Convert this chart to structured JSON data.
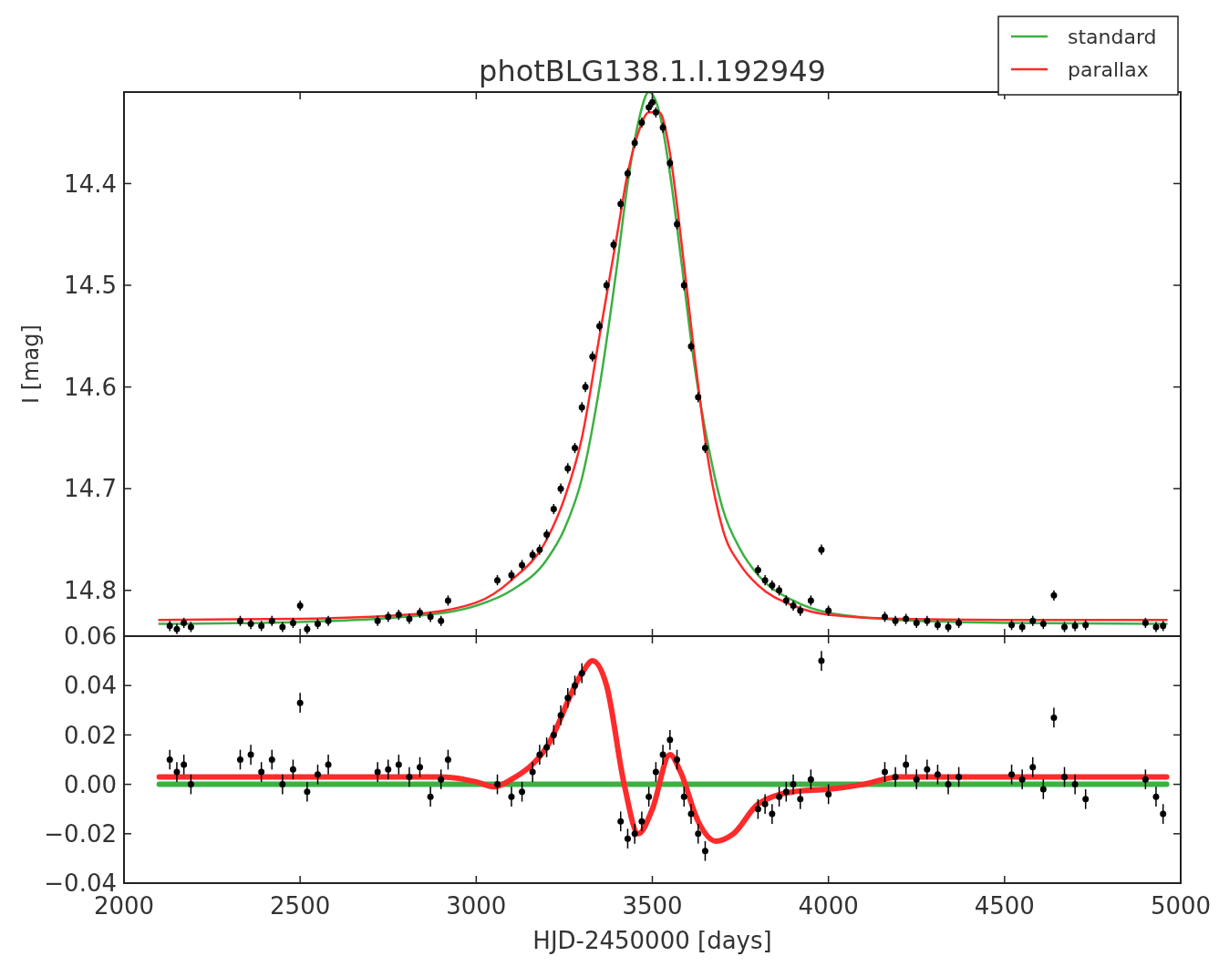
{
  "chart_data": [
    {
      "type": "scatter",
      "title": "photBLG138.1.I.192949",
      "ylabel": "I [mag]",
      "xlim": [
        2000,
        5000
      ],
      "xticks": [
        2000,
        2500,
        3000,
        3500,
        4000,
        4500,
        5000
      ],
      "ylim": [
        14.845,
        14.31
      ],
      "yticks": [
        14.4,
        14.5,
        14.6,
        14.7,
        14.8
      ],
      "tick_labels": "y",
      "legend": "top right",
      "series": [
        {
          "color": "#000000",
          "marker": "circle",
          "x": [
            2130,
            2150,
            2170,
            2190,
            2330,
            2360,
            2390,
            2420,
            2450,
            2480,
            2500,
            2520,
            2550,
            2580,
            2720,
            2750,
            2780,
            2810,
            2840,
            2870,
            2900,
            2920,
            3060,
            3100,
            3130,
            3160,
            3180,
            3200,
            3220,
            3240,
            3260,
            3280,
            3300,
            3310,
            3330,
            3350,
            3370,
            3390,
            3410,
            3430,
            3450,
            3470,
            3490,
            3500,
            3510,
            3530,
            3550,
            3570,
            3590,
            3610,
            3630,
            3650,
            3800,
            3820,
            3840,
            3860,
            3880,
            3900,
            3920,
            3950,
            3980,
            4000,
            4160,
            4190,
            4220,
            4250,
            4280,
            4310,
            4340,
            4370,
            4520,
            4550,
            4580,
            4610,
            4640,
            4670,
            4700,
            4730,
            4900,
            4930,
            4950
          ],
          "values": [
            14.835,
            14.838,
            14.832,
            14.836,
            14.83,
            14.833,
            14.835,
            14.83,
            14.836,
            14.832,
            14.815,
            14.838,
            14.833,
            14.83,
            14.83,
            14.826,
            14.824,
            14.828,
            14.822,
            14.826,
            14.83,
            14.81,
            14.79,
            14.785,
            14.775,
            14.765,
            14.76,
            14.745,
            14.72,
            14.7,
            14.68,
            14.66,
            14.62,
            14.6,
            14.57,
            14.54,
            14.5,
            14.46,
            14.42,
            14.39,
            14.36,
            14.34,
            14.325,
            14.32,
            14.33,
            14.345,
            14.38,
            14.44,
            14.5,
            14.56,
            14.61,
            14.66,
            14.78,
            14.79,
            14.795,
            14.8,
            14.81,
            14.815,
            14.82,
            14.81,
            14.76,
            14.82,
            14.826,
            14.83,
            14.828,
            14.832,
            14.83,
            14.834,
            14.836,
            14.832,
            14.834,
            14.836,
            14.83,
            14.833,
            14.805,
            14.836,
            14.835,
            14.834,
            14.832,
            14.836,
            14.835
          ],
          "errors": [
            0.005,
            0.005,
            0.005,
            0.005,
            0.005,
            0.005,
            0.005,
            0.005,
            0.005,
            0.005,
            0.005,
            0.005,
            0.005,
            0.005,
            0.005,
            0.005,
            0.005,
            0.005,
            0.005,
            0.005,
            0.005,
            0.005,
            0.005,
            0.005,
            0.005,
            0.005,
            0.005,
            0.005,
            0.005,
            0.005,
            0.005,
            0.005,
            0.005,
            0.005,
            0.005,
            0.005,
            0.005,
            0.005,
            0.005,
            0.005,
            0.005,
            0.005,
            0.005,
            0.005,
            0.005,
            0.005,
            0.005,
            0.005,
            0.005,
            0.005,
            0.005,
            0.005,
            0.005,
            0.005,
            0.005,
            0.005,
            0.005,
            0.005,
            0.005,
            0.005,
            0.005,
            0.005,
            0.005,
            0.005,
            0.005,
            0.005,
            0.005,
            0.005,
            0.005,
            0.005,
            0.005,
            0.005,
            0.005,
            0.005,
            0.005,
            0.005,
            0.005,
            0.005,
            0.005,
            0.005,
            0.005
          ]
        },
        {
          "type": "line",
          "name": "standard",
          "color": "#3cb043",
          "x": [
            2100,
            2500,
            2800,
            3000,
            3100,
            3200,
            3250,
            3300,
            3350,
            3400,
            3430,
            3460,
            3490,
            3520,
            3550,
            3580,
            3620,
            3660,
            3700,
            3750,
            3800,
            3900,
            4000,
            4200,
            4500,
            4960
          ],
          "values": [
            14.833,
            14.831,
            14.826,
            14.815,
            14.8,
            14.77,
            14.74,
            14.69,
            14.6,
            14.48,
            14.4,
            14.34,
            14.31,
            14.33,
            14.39,
            14.47,
            14.58,
            14.66,
            14.72,
            14.76,
            14.785,
            14.81,
            14.822,
            14.829,
            14.832,
            14.833
          ]
        },
        {
          "type": "line",
          "name": "parallax",
          "color": "#ff2a2a",
          "x": [
            2100,
            2500,
            2800,
            3000,
            3100,
            3200,
            3250,
            3300,
            3350,
            3400,
            3430,
            3460,
            3490,
            3520,
            3550,
            3580,
            3620,
            3660,
            3700,
            3750,
            3800,
            3900,
            4000,
            4200,
            4500,
            4960
          ],
          "values": [
            14.829,
            14.828,
            14.824,
            14.812,
            14.79,
            14.75,
            14.71,
            14.65,
            14.55,
            14.45,
            14.39,
            14.35,
            14.33,
            14.33,
            14.37,
            14.45,
            14.57,
            14.675,
            14.74,
            14.775,
            14.795,
            14.815,
            14.824,
            14.828,
            14.829,
            14.829
          ]
        }
      ]
    },
    {
      "type": "scatter",
      "xlabel": "HJD-2450000 [days]",
      "xlim": [
        2000,
        5000
      ],
      "xticks": [
        2000,
        2500,
        3000,
        3500,
        4000,
        4500,
        5000
      ],
      "ylim": [
        -0.04,
        0.06
      ],
      "yticks": [
        {
          "value": -0.04,
          "label": "−0.04"
        },
        {
          "value": -0.02,
          "label": "−0.02"
        },
        {
          "value": 0,
          "label": "0.00"
        },
        0.02,
        0.04,
        0.06
      ],
      "series": [
        {
          "color": "#000000",
          "marker": "circle",
          "x": [
            2130,
            2150,
            2170,
            2190,
            2330,
            2360,
            2390,
            2420,
            2450,
            2480,
            2500,
            2520,
            2550,
            2580,
            2720,
            2750,
            2780,
            2810,
            2840,
            2870,
            2900,
            2920,
            3060,
            3100,
            3130,
            3160,
            3180,
            3200,
            3220,
            3240,
            3260,
            3280,
            3300,
            3410,
            3430,
            3450,
            3470,
            3490,
            3510,
            3530,
            3550,
            3570,
            3590,
            3610,
            3630,
            3650,
            3800,
            3820,
            3840,
            3860,
            3880,
            3900,
            3920,
            3950,
            3980,
            4000,
            4160,
            4190,
            4220,
            4250,
            4280,
            4310,
            4340,
            4370,
            4520,
            4550,
            4580,
            4610,
            4640,
            4670,
            4700,
            4730,
            4900,
            4930,
            4950
          ],
          "values": [
            0.01,
            0.005,
            0.008,
            0.0,
            0.01,
            0.012,
            0.005,
            0.01,
            0.0,
            0.006,
            0.033,
            -0.003,
            0.004,
            0.008,
            0.005,
            0.006,
            0.008,
            0.003,
            0.007,
            -0.005,
            0.002,
            0.01,
            0.0,
            -0.005,
            -0.003,
            0.005,
            0.012,
            0.015,
            0.02,
            0.028,
            0.035,
            0.04,
            0.045,
            -0.015,
            -0.022,
            -0.02,
            -0.015,
            -0.005,
            0.005,
            0.012,
            0.018,
            0.01,
            -0.005,
            -0.012,
            -0.02,
            -0.027,
            -0.01,
            -0.008,
            -0.012,
            -0.005,
            -0.003,
            0.0,
            -0.006,
            0.002,
            0.05,
            -0.004,
            0.005,
            0.003,
            0.008,
            0.002,
            0.006,
            0.004,
            0.0,
            0.003,
            0.004,
            0.002,
            0.007,
            -0.002,
            0.027,
            0.003,
            0.0,
            -0.006,
            0.002,
            -0.005,
            -0.012
          ],
          "errors": [
            0.004,
            0.004,
            0.004,
            0.004,
            0.004,
            0.004,
            0.004,
            0.004,
            0.004,
            0.004,
            0.004,
            0.004,
            0.004,
            0.004,
            0.004,
            0.004,
            0.004,
            0.004,
            0.004,
            0.004,
            0.004,
            0.004,
            0.004,
            0.004,
            0.004,
            0.004,
            0.004,
            0.004,
            0.004,
            0.004,
            0.004,
            0.004,
            0.004,
            0.004,
            0.004,
            0.004,
            0.004,
            0.004,
            0.004,
            0.004,
            0.004,
            0.004,
            0.004,
            0.004,
            0.004,
            0.004,
            0.004,
            0.004,
            0.004,
            0.004,
            0.004,
            0.004,
            0.004,
            0.004,
            0.004,
            0.004,
            0.004,
            0.004,
            0.004,
            0.004,
            0.004,
            0.004,
            0.004,
            0.004,
            0.004,
            0.004,
            0.004,
            0.004,
            0.004,
            0.004,
            0.004,
            0.004,
            0.004,
            0.004,
            0.004
          ]
        },
        {
          "type": "line",
          "color": "#3cb043",
          "x": [
            2100,
            4960
          ],
          "values": [
            0,
            0
          ]
        },
        {
          "type": "line",
          "color": "#ff2a2a",
          "x": [
            2100,
            2900,
            3000,
            3050,
            3100,
            3200,
            3300,
            3330,
            3370,
            3420,
            3460,
            3500,
            3550,
            3580,
            3630,
            3680,
            3730,
            3800,
            3900,
            4000,
            4100,
            4200,
            4500,
            4960
          ],
          "values": [
            0.003,
            0.003,
            0.001,
            -0.001,
            0.002,
            0.015,
            0.045,
            0.05,
            0.04,
            0.0,
            -0.02,
            -0.01,
            0.012,
            0.005,
            -0.015,
            -0.023,
            -0.02,
            -0.008,
            -0.003,
            -0.002,
            0.0,
            0.003,
            0.003,
            0.003
          ]
        }
      ]
    }
  ]
}
